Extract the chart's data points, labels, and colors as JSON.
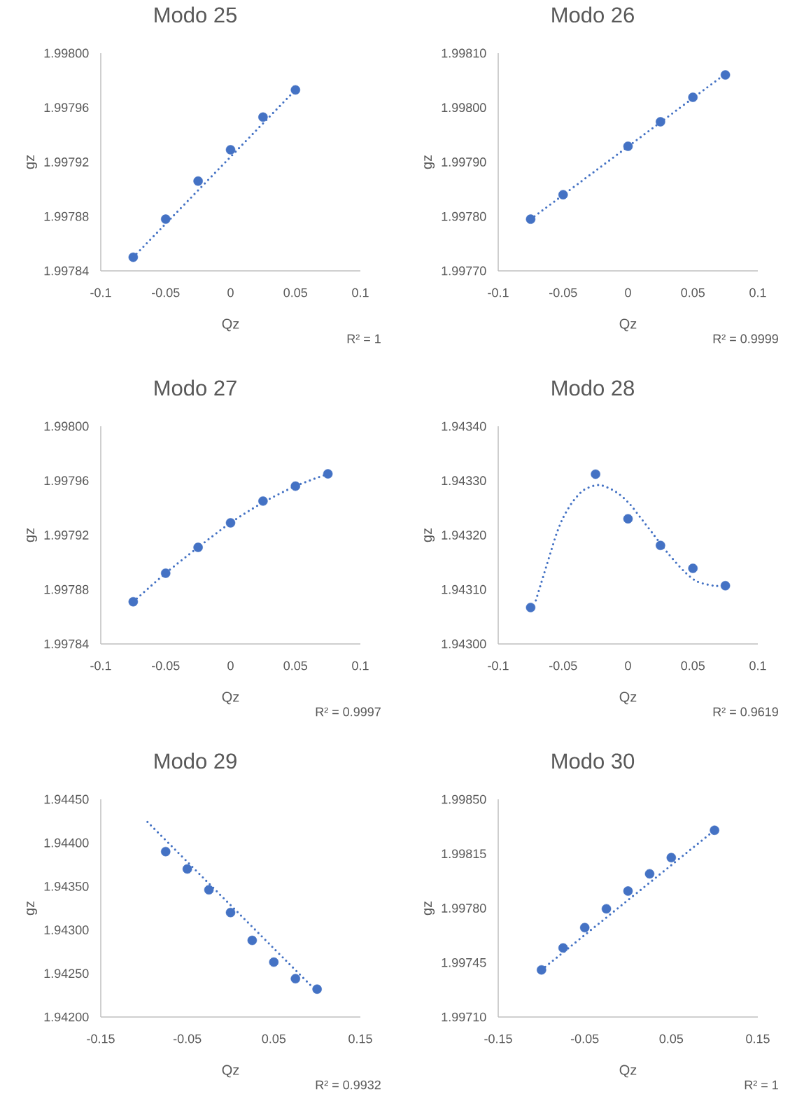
{
  "chart_data": [
    {
      "type": "scatter",
      "title": "Modo 25",
      "xlabel": "Qz",
      "ylabel": "gz",
      "annotations": [
        "R² = 1"
      ],
      "xlim": [
        -0.1,
        0.1
      ],
      "xticks": [
        -0.1,
        -0.05,
        0,
        0.05,
        0.1
      ],
      "ylim": [
        1.99784,
        1.998
      ],
      "yticks": [
        {
          "value": 1.99784,
          "label": "1.99784"
        },
        {
          "value": 1.99788,
          "label": "1.99788"
        },
        {
          "value": 1.99792,
          "label": "1.99792"
        },
        {
          "value": 1.99796,
          "label": "1.99796"
        },
        {
          "value": 1.998,
          "label": "1.99800"
        }
      ],
      "series": [
        {
          "type": "scatter",
          "marker": "circle",
          "color": "#4472c4",
          "x": [
            -0.075,
            -0.05,
            -0.025,
            0,
            0.025,
            0.05
          ],
          "values": [
            1.99785,
            1.997878,
            1.997906,
            1.997929,
            1.997953,
            1.997973
          ]
        },
        {
          "type": "line",
          "marker": "none",
          "line_style": "dotted",
          "color": "#4472c4",
          "x": [
            -0.075,
            0.05
          ],
          "values": [
            1.99785,
            1.997973
          ]
        }
      ]
    },
    {
      "type": "scatter",
      "title": "Modo 26",
      "xlabel": "Qz",
      "ylabel": "gz",
      "annotations": [
        "R² = 0.9999"
      ],
      "xlim": [
        -0.1,
        0.1
      ],
      "xticks": [
        -0.1,
        -0.05,
        0,
        0.05,
        0.1
      ],
      "ylim": [
        1.9977,
        1.9981
      ],
      "yticks": [
        {
          "value": 1.9977,
          "label": "1.99770"
        },
        {
          "value": 1.9978,
          "label": "1.99780"
        },
        {
          "value": 1.9979,
          "label": "1.99790"
        },
        {
          "value": 1.998,
          "label": "1.99800"
        },
        {
          "value": 1.9981,
          "label": "1.99810"
        }
      ],
      "series": [
        {
          "type": "scatter",
          "marker": "circle",
          "color": "#4472c4",
          "x": [
            -0.075,
            -0.05,
            0,
            0.025,
            0.05,
            0.075
          ],
          "values": [
            1.997795,
            1.99784,
            1.997929,
            1.997974,
            1.998019,
            1.99806
          ]
        },
        {
          "type": "line",
          "marker": "none",
          "line_style": "dotted",
          "color": "#4472c4",
          "x": [
            -0.075,
            0.075
          ],
          "values": [
            1.997795,
            1.998062
          ]
        }
      ]
    },
    {
      "type": "scatter",
      "title": "Modo 27",
      "xlabel": "Qz",
      "ylabel": "gz",
      "annotations": [
        "R² = 0.9997"
      ],
      "xlim": [
        -0.1,
        0.1
      ],
      "xticks": [
        -0.1,
        -0.05,
        0,
        0.05,
        0.1
      ],
      "ylim": [
        1.99784,
        1.998
      ],
      "yticks": [
        {
          "value": 1.99784,
          "label": "1.99784"
        },
        {
          "value": 1.99788,
          "label": "1.99788"
        },
        {
          "value": 1.99792,
          "label": "1.99792"
        },
        {
          "value": 1.99796,
          "label": "1.99796"
        },
        {
          "value": 1.998,
          "label": "1.99800"
        }
      ],
      "series": [
        {
          "type": "scatter",
          "marker": "circle",
          "color": "#4472c4",
          "x": [
            -0.075,
            -0.05,
            -0.025,
            0,
            0.025,
            0.05,
            0.075
          ],
          "values": [
            1.997871,
            1.997892,
            1.997911,
            1.997929,
            1.997945,
            1.997956,
            1.997965
          ]
        },
        {
          "type": "line",
          "marker": "none",
          "line_style": "dotted",
          "color": "#4472c4",
          "x": [
            -0.075,
            -0.05,
            -0.025,
            0,
            0.025,
            0.05,
            0.075
          ],
          "values": [
            1.997871,
            1.997892,
            1.997911,
            1.997929,
            1.997944,
            1.997956,
            1.997965
          ]
        }
      ]
    },
    {
      "type": "scatter",
      "title": "Modo 28",
      "xlabel": "Qz",
      "ylabel": "gz",
      "annotations": [
        "R² = 0.9619"
      ],
      "xlim": [
        -0.1,
        0.1
      ],
      "xticks": [
        -0.1,
        -0.05,
        0,
        0.05,
        0.1
      ],
      "ylim": [
        1.943,
        1.9434
      ],
      "yticks": [
        {
          "value": 1.943,
          "label": "1.94300"
        },
        {
          "value": 1.9431,
          "label": "1.94310"
        },
        {
          "value": 1.9432,
          "label": "1.94320"
        },
        {
          "value": 1.9433,
          "label": "1.94330"
        },
        {
          "value": 1.9434,
          "label": "1.94340"
        }
      ],
      "series": [
        {
          "type": "scatter",
          "marker": "circle",
          "color": "#4472c4",
          "x": [
            -0.075,
            -0.025,
            0,
            0.025,
            0.05,
            0.075
          ],
          "values": [
            1.943067,
            1.943312,
            1.94323,
            1.943181,
            1.943139,
            1.943107
          ]
        },
        {
          "type": "line",
          "marker": "none",
          "line_style": "dotted",
          "color": "#4472c4",
          "x": [
            -0.071,
            -0.067,
            -0.063,
            -0.059,
            -0.055,
            -0.05,
            -0.043,
            -0.034,
            -0.022,
            -0.009,
            0.001,
            0.009,
            0.02,
            0.031,
            0.043,
            0.053,
            0.066,
            0.074
          ],
          "values": [
            1.94308,
            1.943111,
            1.943142,
            1.943173,
            1.943203,
            1.943232,
            1.94326,
            1.943283,
            1.943292,
            1.943279,
            1.943258,
            1.943234,
            1.9432,
            1.943166,
            1.943134,
            1.943115,
            1.943107,
            1.943107
          ]
        }
      ]
    },
    {
      "type": "scatter",
      "title": "Modo 29",
      "xlabel": "Qz",
      "ylabel": "gz",
      "annotations": [
        "R² = 0.9932"
      ],
      "xlim": [
        -0.15,
        0.15
      ],
      "xticks": [
        -0.15,
        -0.05,
        0.05,
        0.15
      ],
      "ylim": [
        1.942,
        1.9445
      ],
      "yticks": [
        {
          "value": 1.942,
          "label": "1.94200"
        },
        {
          "value": 1.9425,
          "label": "1.94250"
        },
        {
          "value": 1.943,
          "label": "1.94300"
        },
        {
          "value": 1.9435,
          "label": "1.94350"
        },
        {
          "value": 1.944,
          "label": "1.94400"
        },
        {
          "value": 1.9445,
          "label": "1.94450"
        }
      ],
      "series": [
        {
          "type": "scatter",
          "marker": "circle",
          "color": "#4472c4",
          "x": [
            -0.075,
            -0.05,
            -0.025,
            0,
            0.025,
            0.05,
            0.075,
            0.1
          ],
          "values": [
            1.9439,
            1.9437,
            1.94346,
            1.9432,
            1.94288,
            1.94263,
            1.94244,
            1.94232
          ]
        },
        {
          "type": "line",
          "marker": "none",
          "line_style": "dotted",
          "color": "#4472c4",
          "x": [
            -0.096,
            0.097
          ],
          "values": [
            1.94424,
            1.94232
          ]
        }
      ]
    },
    {
      "type": "scatter",
      "title": "Modo 30",
      "xlabel": "Qz",
      "ylabel": "gz",
      "annotations": [
        "R² = 1"
      ],
      "xlim": [
        -0.15,
        0.15
      ],
      "xticks": [
        -0.15,
        -0.05,
        0.05,
        0.15
      ],
      "ylim": [
        1.9971,
        1.9985
      ],
      "yticks": [
        {
          "value": 1.9971,
          "label": "1.99710"
        },
        {
          "value": 1.99745,
          "label": "1.99745"
        },
        {
          "value": 1.9978,
          "label": "1.99780"
        },
        {
          "value": 1.99815,
          "label": "1.99815"
        },
        {
          "value": 1.9985,
          "label": "1.99850"
        }
      ],
      "series": [
        {
          "type": "scatter",
          "marker": "circle",
          "color": "#4472c4",
          "x": [
            -0.1,
            -0.075,
            -0.05,
            -0.025,
            0,
            0.025,
            0.05,
            0.1
          ],
          "values": [
            1.997403,
            1.997544,
            1.997675,
            1.997796,
            1.99791,
            1.998021,
            1.998125,
            1.998301
          ]
        },
        {
          "type": "line",
          "marker": "none",
          "line_style": "dotted",
          "color": "#4472c4",
          "x": [
            -0.1,
            0.1
          ],
          "values": [
            1.997403,
            1.998301
          ]
        }
      ]
    }
  ]
}
